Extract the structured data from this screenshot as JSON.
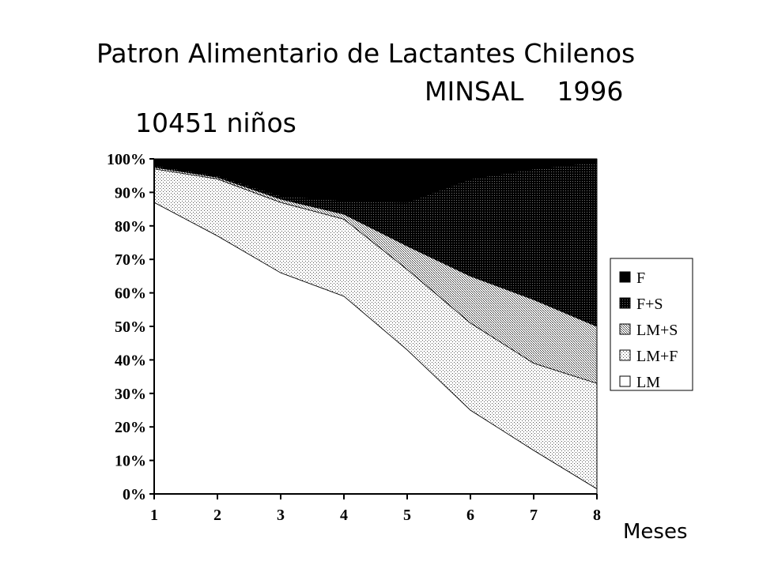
{
  "title": {
    "line1": "Patron Alimentario de Lactantes Chilenos",
    "line2_left": "10451 niños",
    "line2_right": "MINSAL    1996"
  },
  "chart_data": {
    "type": "area",
    "stacked": true,
    "xlabel": "Meses",
    "ylabel": "",
    "x": [
      1,
      2,
      3,
      4,
      5,
      6,
      7,
      8
    ],
    "xlim": [
      1,
      8
    ],
    "ylim": [
      0,
      100
    ],
    "y_ticks": [
      "0%",
      "10%",
      "20%",
      "30%",
      "40%",
      "50%",
      "60%",
      "70%",
      "80%",
      "90%",
      "100%"
    ],
    "x_ticks": [
      "1",
      "2",
      "3",
      "4",
      "5",
      "6",
      "7",
      "8"
    ],
    "grid": false,
    "legend_position": "right",
    "series": [
      {
        "name": "LM",
        "pattern": "white",
        "values": [
          87,
          77,
          66,
          59,
          43,
          25,
          13,
          1.5
        ]
      },
      {
        "name": "LM+F",
        "pattern": "light-dots",
        "values": [
          10,
          17,
          21,
          23,
          24,
          26,
          26,
          31.5
        ]
      },
      {
        "name": "LM+S",
        "pattern": "medium-dots",
        "values": [
          0.5,
          0.5,
          1,
          1.5,
          7,
          14,
          19,
          17
        ]
      },
      {
        "name": "F+S",
        "pattern": "dark-dots",
        "values": [
          0.5,
          0.5,
          1,
          4,
          13,
          29,
          39,
          49
        ]
      },
      {
        "name": "F",
        "pattern": "black",
        "values": [
          2,
          5,
          11,
          12.5,
          13,
          6,
          3,
          1
        ]
      }
    ]
  },
  "colors": {
    "F": "#000000",
    "F+S": "#141414",
    "LM+S": "#9a9a9a",
    "LM+F": "#d8d8d8",
    "LM": "#ffffff"
  }
}
